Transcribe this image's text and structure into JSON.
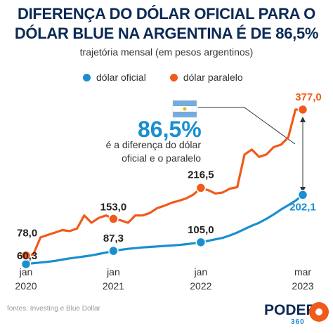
{
  "title": "DIFERENÇA DO DÓLAR OFICIAL PARA O DÓLAR BLUE NA ARGENTINA É DE 86,5%",
  "subtitle": "trajetória mensal (em pesos argentinos)",
  "legend": [
    {
      "label": "dólar oficial",
      "color": "#1a8fd0"
    },
    {
      "label": "dólar paralelo",
      "color": "#f05a1a"
    }
  ],
  "annotation": {
    "percent": "86,5%",
    "text": "é a diferença do dólar oficial e o paralelo",
    "flag": "argentina-flag"
  },
  "source": "fontes: Investing e Blue Dollar",
  "brand": {
    "name": "PODER",
    "sub": "360"
  },
  "chart_data": {
    "type": "line",
    "x_ticks": [
      {
        "month": 0,
        "label": "jan\n2020"
      },
      {
        "month": 12,
        "label": "jan\n2021"
      },
      {
        "month": 24,
        "label": "jan\n2022"
      },
      {
        "month": 38,
        "label": "mar\n2023"
      }
    ],
    "xlim": [
      0,
      38
    ],
    "ylim": [
      40,
      400
    ],
    "series": [
      {
        "name": "dólar oficial",
        "color": "#1a8fd0",
        "values": [
          60.3,
          62,
          63.5,
          65,
          67,
          69.5,
          72,
          74,
          76,
          78,
          81,
          84,
          87.3,
          89.5,
          91.5,
          93,
          94.5,
          95.5,
          96.5,
          97.5,
          98.5,
          99.5,
          101,
          103,
          105.0,
          108,
          111,
          114,
          119,
          125,
          132,
          139,
          145,
          153,
          162,
          172,
          181,
          190,
          202.1
        ],
        "labels": [
          {
            "index": 0,
            "text": "60,3"
          },
          {
            "index": 12,
            "text": "87,3"
          },
          {
            "index": 24,
            "text": "105,0"
          },
          {
            "index": 38,
            "text": "202,1"
          }
        ]
      },
      {
        "name": "dólar paralelo",
        "color": "#f05a1a",
        "values": [
          78.0,
          80,
          115,
          120,
          125,
          130,
          128,
          133,
          160,
          145,
          155,
          160,
          153.0,
          150,
          145,
          160,
          160,
          165,
          175,
          180,
          186,
          190,
          195,
          203,
          216.5,
          212,
          205,
          207,
          215,
          218,
          285,
          295,
          280,
          285,
          300,
          305,
          320,
          377.0,
          377.0
        ],
        "labels": [
          {
            "index": 0,
            "text": "78,0"
          },
          {
            "index": 12,
            "text": "153,0"
          },
          {
            "index": 24,
            "text": "216,5"
          },
          {
            "index": 38,
            "text": "377,0"
          }
        ]
      }
    ]
  }
}
